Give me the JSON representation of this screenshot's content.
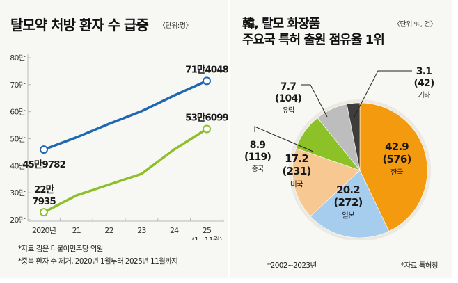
{
  "left": {
    "title": "탈모약 처방 환자 수 급증",
    "unit": "〈단위:명〉",
    "notes": [
      "*자료:김윤 더불어민주당 의원",
      "*중복 환자 수 제거, 2020년 1월부터 2025년 11월까지"
    ]
  },
  "right": {
    "title_line1": "韓, 탈모 화장품",
    "title_line2": "주요국 특허 출원 점유율 1위",
    "unit": "〈단위:%, 건〉",
    "note_period": "*2002~2023년",
    "note_source": "*자료:특허청"
  },
  "chart_data": [
    {
      "type": "line",
      "title": "탈모약 처방 환자 수 급증",
      "unit": "명",
      "categories": [
        "2020년",
        "21",
        "22",
        "23",
        "24",
        "25"
      ],
      "category_sublabels": [
        "",
        "",
        "",
        "",
        "",
        "(1~11월)"
      ],
      "yticks": [
        "20만",
        "30만",
        "40만",
        "50만",
        "60만",
        "70만",
        "80만"
      ],
      "ylim": [
        200000,
        800000
      ],
      "series": [
        {
          "name": "series-upper",
          "color": "#1f67b1",
          "values": [
            459782,
            505000,
            555000,
            602000,
            660000,
            714048
          ],
          "labels": {
            "0": "45만9782",
            "5": "71만4048"
          }
        },
        {
          "name": "series-lower",
          "color": "#8cbf2a",
          "values": [
            227935,
            290000,
            330000,
            370000,
            460000,
            536099
          ],
          "labels": {
            "0": "22만|7935",
            "5": "53만6099"
          }
        }
      ]
    },
    {
      "type": "pie",
      "title": "韓, 탈모 화장품 주요국 특허 출원 점유율 1위",
      "unit": "%, 건",
      "slices": [
        {
          "name": "한국",
          "percent": 42.9,
          "count": 576,
          "color": "#f39a0e",
          "label_pct": "42.9",
          "label_cnt": "(576)"
        },
        {
          "name": "일본",
          "percent": 20.2,
          "count": 272,
          "color": "#a7cdee",
          "label_pct": "20.2",
          "label_cnt": "(272)"
        },
        {
          "name": "미국",
          "percent": 17.2,
          "count": 231,
          "color": "#f8c893",
          "label_pct": "17.2",
          "label_cnt": "(231)"
        },
        {
          "name": "중국",
          "percent": 8.9,
          "count": 119,
          "color": "#8cc227",
          "label_pct": "8.9",
          "label_cnt": "(119)"
        },
        {
          "name": "유럽",
          "percent": 7.7,
          "count": 104,
          "color": "#bdbdbd",
          "label_pct": "7.7",
          "label_cnt": "(104)"
        },
        {
          "name": "기타",
          "percent": 3.1,
          "count": 42,
          "color": "#3f3d3c",
          "label_pct": "3.1",
          "label_cnt": "(42)"
        }
      ]
    }
  ]
}
